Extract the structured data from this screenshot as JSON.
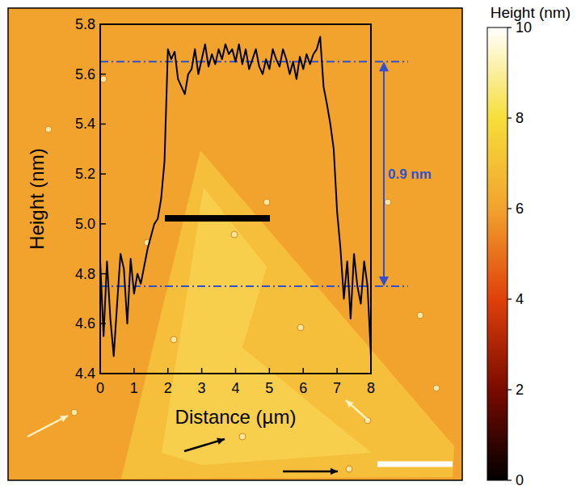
{
  "chart_data": {
    "type": "line",
    "x_label": "Distance (µm)",
    "y_label": "Height (nm)",
    "x": [
      0,
      0.1,
      0.2,
      0.3,
      0.4,
      0.5,
      0.6,
      0.7,
      0.8,
      0.9,
      1,
      1.1,
      1.2,
      1.3,
      1.4,
      1.5,
      1.6,
      1.7,
      1.8,
      1.9,
      2,
      2.1,
      2.2,
      2.3,
      2.4,
      2.5,
      2.6,
      2.7,
      2.8,
      2.9,
      3,
      3.1,
      3.2,
      3.3,
      3.4,
      3.5,
      3.6,
      3.7,
      3.8,
      3.9,
      4,
      4.1,
      4.2,
      4.3,
      4.4,
      4.5,
      4.6,
      4.7,
      4.8,
      4.9,
      5,
      5.1,
      5.2,
      5.3,
      5.4,
      5.5,
      5.6,
      5.7,
      5.8,
      5.9,
      6,
      6.1,
      6.2,
      6.3,
      6.4,
      6.5,
      6.6,
      6.7,
      6.8,
      6.9,
      7,
      7.1,
      7.2,
      7.3,
      7.4,
      7.5,
      7.6,
      7.7,
      7.8,
      7.9,
      8
    ],
    "values": [
      4.85,
      4.55,
      4.85,
      4.62,
      4.47,
      4.68,
      4.88,
      4.82,
      4.6,
      4.86,
      4.72,
      4.8,
      4.76,
      4.83,
      4.9,
      4.95,
      5.0,
      5.02,
      5.1,
      5.25,
      5.7,
      5.66,
      5.69,
      5.58,
      5.55,
      5.52,
      5.6,
      5.62,
      5.7,
      5.6,
      5.66,
      5.72,
      5.63,
      5.68,
      5.64,
      5.7,
      5.66,
      5.72,
      5.68,
      5.7,
      5.65,
      5.72,
      5.64,
      5.7,
      5.62,
      5.66,
      5.7,
      5.63,
      5.6,
      5.66,
      5.62,
      5.7,
      5.66,
      5.63,
      5.7,
      5.66,
      5.6,
      5.65,
      5.58,
      5.67,
      5.62,
      5.68,
      5.64,
      5.68,
      5.7,
      5.75,
      5.55,
      5.48,
      5.4,
      5.3,
      5.05,
      4.9,
      4.7,
      4.85,
      4.62,
      4.88,
      4.75,
      4.68,
      4.85,
      4.75,
      4.47
    ],
    "color": "#000000",
    "xlim": [
      0,
      8
    ],
    "xticks": [
      0,
      1,
      2,
      3,
      4,
      5,
      6,
      7,
      8
    ],
    "ylim": [
      4.4,
      5.8
    ],
    "yticks": [
      4.4,
      4.6,
      4.8,
      {
        "value": 5,
        "label": "5.0"
      },
      5.2,
      5.4,
      5.6,
      5.8
    ],
    "annotations": [
      {
        "text": "0.9 nm",
        "y1": 4.75,
        "y2": 5.65,
        "color": "#3050d0",
        "line_style": "dashdot"
      }
    ],
    "colorbar": {
      "label": "Height (nm)",
      "range": [
        0,
        10
      ],
      "ticks": [
        0,
        2,
        4,
        6,
        8,
        10
      ]
    }
  }
}
